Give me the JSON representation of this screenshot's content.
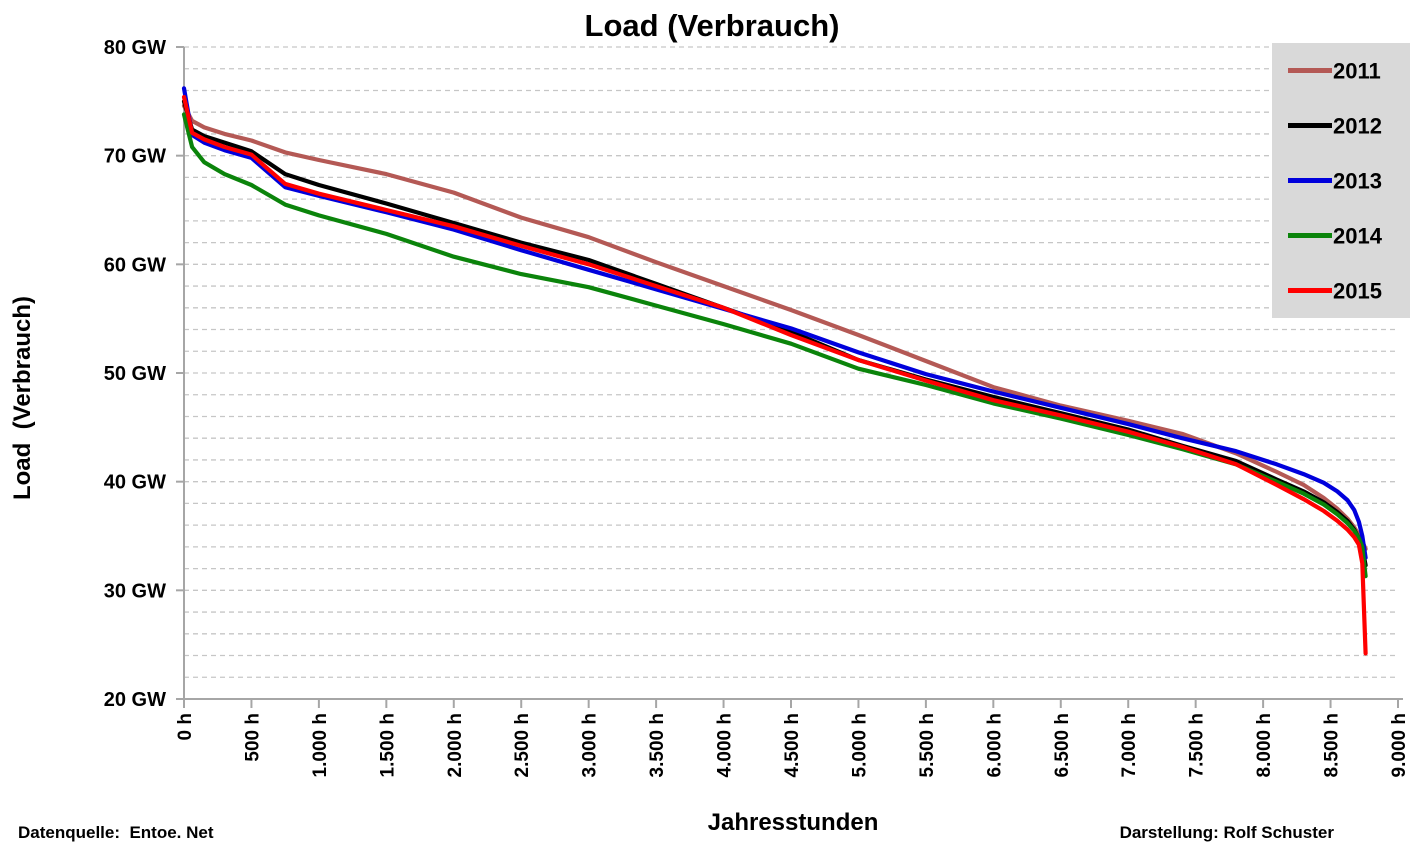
{
  "title": "Load (Verbrauch)",
  "y_axis": {
    "title": "Load  (Verbrauch)",
    "unit": "GW",
    "tick_labels": [
      "80 GW",
      "70 GW",
      "60 GW",
      "50 GW",
      "40 GW",
      "30 GW",
      "20 GW"
    ],
    "tick_values": [
      80,
      70,
      60,
      50,
      40,
      30,
      20
    ]
  },
  "x_axis": {
    "title": "Jahresstunden",
    "unit": "h",
    "tick_labels": [
      "0 h",
      "500 h",
      "1.000 h",
      "1.500 h",
      "2.000 h",
      "2.500 h",
      "3.000 h",
      "3.500 h",
      "4.000 h",
      "4.500 h",
      "5.000 h",
      "5.500 h",
      "6.000 h",
      "6.500 h",
      "7.000 h",
      "7.500 h",
      "8.000 h",
      "8.500 h",
      "9.000 h"
    ],
    "tick_values": [
      0,
      500,
      1000,
      1500,
      2000,
      2500,
      3000,
      3500,
      4000,
      4500,
      5000,
      5500,
      6000,
      6500,
      7000,
      7500,
      8000,
      8500,
      9000
    ]
  },
  "footer": {
    "left": "Datenquelle:  Entoe. Net",
    "right": "Darstellung: Rolf Schuster"
  },
  "legend": {
    "background": "#D9D9D9",
    "position": "right top"
  },
  "style": {
    "grid_color": "#C6C6C6",
    "axis_color": "#A6A6A6",
    "text_color": "#000000",
    "background": "#FFFFFF"
  },
  "chart_data": {
    "type": "line",
    "title": "Load (Verbrauch)",
    "xlabel": "Jahresstunden",
    "ylabel": "Load (Verbrauch)",
    "xlim": [
      0,
      9000
    ],
    "ylim": [
      20,
      80
    ],
    "y_major_step": 10,
    "y_minor_step": 2,
    "x_step": 500,
    "grid": "horizontal dashed lines every 2 GW",
    "legend_position": "right top",
    "x_hours": [
      0,
      60,
      150,
      300,
      500,
      750,
      1000,
      1500,
      2000,
      2500,
      3000,
      3500,
      4000,
      4500,
      5000,
      5500,
      6000,
      6500,
      7000,
      7400,
      7800,
      8100,
      8300,
      8450,
      8550,
      8625,
      8675,
      8710,
      8735,
      8760
    ],
    "series": [
      {
        "name": "2011",
        "color": "#B45955",
        "values": [
          74.6,
          73.2,
          72.6,
          72.0,
          71.4,
          70.3,
          69.6,
          68.3,
          66.6,
          64.3,
          62.5,
          60.2,
          58.0,
          55.8,
          53.5,
          51.1,
          48.7,
          47.0,
          45.6,
          44.4,
          42.6,
          40.9,
          39.7,
          38.5,
          37.5,
          36.6,
          35.8,
          35.1,
          34.5,
          33.8
        ]
      },
      {
        "name": "2012",
        "color": "#000000",
        "values": [
          75.0,
          72.4,
          71.8,
          71.2,
          70.4,
          68.3,
          67.3,
          65.6,
          63.8,
          62.0,
          60.4,
          58.2,
          56.0,
          53.8,
          51.2,
          49.4,
          47.8,
          46.3,
          44.8,
          43.3,
          41.9,
          40.2,
          39.1,
          38.1,
          37.2,
          36.4,
          35.6,
          34.8,
          33.9,
          32.3
        ]
      },
      {
        "name": "2013",
        "color": "#0000DC",
        "values": [
          76.2,
          71.9,
          71.2,
          70.5,
          69.8,
          67.1,
          66.3,
          64.8,
          63.2,
          61.3,
          59.5,
          57.7,
          55.9,
          54.1,
          51.9,
          49.9,
          48.3,
          46.8,
          45.3,
          44.0,
          42.8,
          41.6,
          40.7,
          39.9,
          39.1,
          38.3,
          37.4,
          36.3,
          35.0,
          33.0
        ]
      },
      {
        "name": "2014",
        "color": "#0B840B",
        "values": [
          73.8,
          70.8,
          69.4,
          68.3,
          67.3,
          65.5,
          64.5,
          62.8,
          60.7,
          59.1,
          57.9,
          56.2,
          54.5,
          52.7,
          50.4,
          48.9,
          47.2,
          45.8,
          44.3,
          43.0,
          41.6,
          40.0,
          38.9,
          37.9,
          37.0,
          36.2,
          35.5,
          34.8,
          34.0,
          31.3
        ]
      },
      {
        "name": "2015",
        "color": "#FF0000",
        "values": [
          75.4,
          72.1,
          71.5,
          70.8,
          70.1,
          67.4,
          66.5,
          65.0,
          63.5,
          61.7,
          60.0,
          58.0,
          56.0,
          53.5,
          51.2,
          49.3,
          47.5,
          46.1,
          44.6,
          43.2,
          41.6,
          39.7,
          38.4,
          37.3,
          36.4,
          35.6,
          34.9,
          34.2,
          32.5,
          24.2
        ]
      }
    ]
  }
}
